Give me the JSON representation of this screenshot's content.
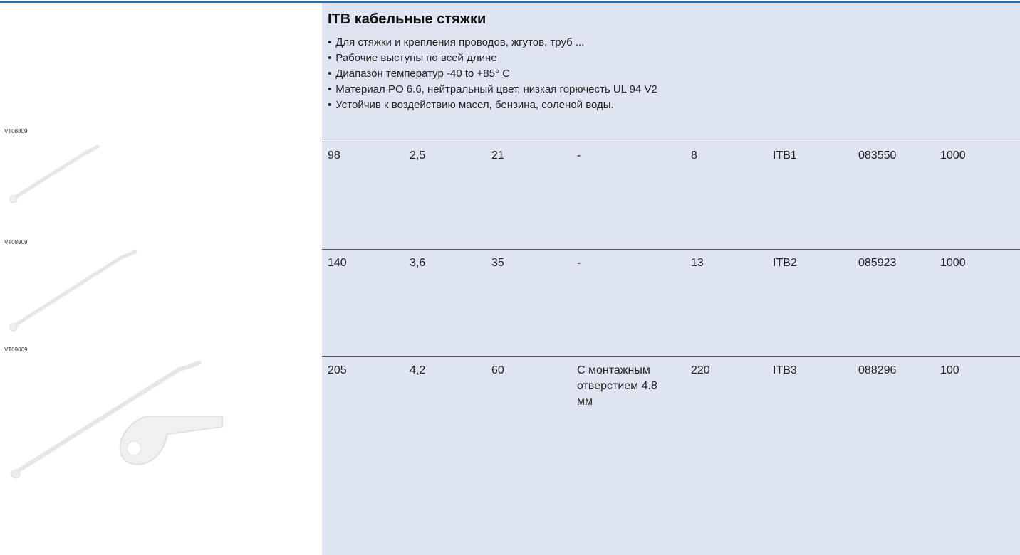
{
  "header": {
    "title": "ITB кабельные стяжки"
  },
  "bullets": [
    "Для стяжки и крепления проводов, жгутов, труб ...",
    "Рабочие выступы по всей длине",
    "Диапазон температур -40 to +85° C",
    "Материал PO 6.6, нейтральный цвет, низкая горючесть UL 94 V2",
    "Устойчив к воздействию масел, бензина, соленой воды."
  ],
  "images": [
    "VT08809",
    "VT08909",
    "VT09009"
  ],
  "table": {
    "rows": [
      [
        "98",
        "2,5",
        "21",
        "-",
        "8",
        "ITB1",
        "083550",
        "1000"
      ],
      [
        "140",
        "3,6",
        "35",
        "-",
        "13",
        "ITB2",
        "085923",
        "1000"
      ],
      [
        "205",
        "4,2",
        "60",
        "С монтажным отверстием 4.8 мм",
        "220",
        "ITB3",
        "088296",
        "100"
      ]
    ]
  }
}
